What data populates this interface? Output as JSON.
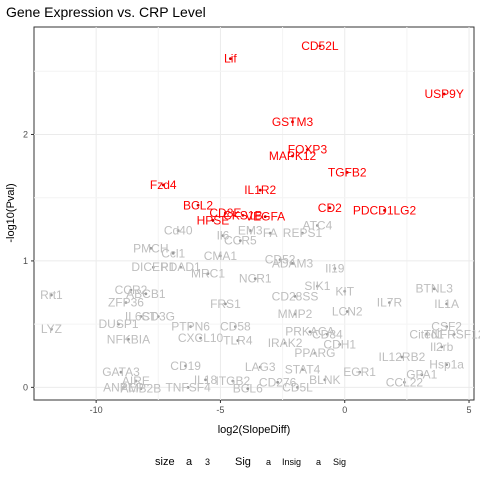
{
  "chart_data": {
    "type": "scatter",
    "title": "Gene Expression vs. CRP Level",
    "xlabel": "log2(SlopeDiff)",
    "ylabel": "-log10(Pval)",
    "xlim": [
      -12.5,
      5.2
    ],
    "ylim": [
      -0.1,
      2.85
    ],
    "x_ticks": [
      -10,
      -5,
      0,
      5
    ],
    "y_ticks": [
      0,
      1,
      2
    ],
    "grid": true,
    "colors": {
      "insig": "#bebebe",
      "sig": "#ff0000",
      "point_insig": "#9a9a9a",
      "point_sig": "#cc0000"
    },
    "legend": {
      "position": "bottom",
      "size_title": "size",
      "size_key": "a",
      "size_value": "3",
      "sig_title": "Sig",
      "key_glyph": "a",
      "items": [
        {
          "name": "Insig",
          "group": "insig"
        },
        {
          "name": "Sig",
          "group": "sig"
        }
      ]
    },
    "significant": [
      {
        "label": "CD52L",
        "x": -1.0,
        "y": 2.7
      },
      {
        "label": "Lif",
        "x": -4.6,
        "y": 2.6
      },
      {
        "label": "USP9Y",
        "x": 4.0,
        "y": 2.32
      },
      {
        "label": "GSTM3",
        "x": -2.1,
        "y": 2.1
      },
      {
        "label": "FOXP3",
        "x": -1.5,
        "y": 1.88
      },
      {
        "label": "MAPK12",
        "x": -2.1,
        "y": 1.83
      },
      {
        "label": "TGFB2",
        "x": 0.1,
        "y": 1.7
      },
      {
        "label": "Fzd4",
        "x": -7.3,
        "y": 1.6
      },
      {
        "label": "IL1R2",
        "x": -3.4,
        "y": 1.56
      },
      {
        "label": "BCL2",
        "x": -5.9,
        "y": 1.44
      },
      {
        "label": "CD2",
        "x": -0.6,
        "y": 1.42
      },
      {
        "label": "PDCD1LG2",
        "x": 1.6,
        "y": 1.4
      },
      {
        "label": "CD8E",
        "x": -4.8,
        "y": 1.38
      },
      {
        "label": "CKS1B",
        "x": -4.1,
        "y": 1.36
      },
      {
        "label": "VEGFA",
        "x": -3.2,
        "y": 1.35
      },
      {
        "label": "HPSE",
        "x": -5.3,
        "y": 1.32
      }
    ],
    "insignificant": [
      {
        "label": "ATC4",
        "x": -1.1,
        "y": 1.28
      },
      {
        "label": "EM3",
        "x": -3.8,
        "y": 1.24
      },
      {
        "label": "FA",
        "x": -3.0,
        "y": 1.22
      },
      {
        "label": "REPS1",
        "x": -1.7,
        "y": 1.22
      },
      {
        "label": "Il6",
        "x": -4.9,
        "y": 1.2
      },
      {
        "label": "Cd40",
        "x": -6.7,
        "y": 1.24
      },
      {
        "label": "CCR5",
        "x": -4.2,
        "y": 1.16
      },
      {
        "label": "PMCH",
        "x": -7.8,
        "y": 1.1
      },
      {
        "label": "Ccl1",
        "x": -6.9,
        "y": 1.06
      },
      {
        "label": "CMA1",
        "x": -5.0,
        "y": 1.04
      },
      {
        "label": "CD52",
        "x": -2.6,
        "y": 1.01
      },
      {
        "label": "ADAM3",
        "x": -2.1,
        "y": 0.98
      },
      {
        "label": "DICER1",
        "x": -7.7,
        "y": 0.95
      },
      {
        "label": "PDAD1",
        "x": -6.6,
        "y": 0.95
      },
      {
        "label": "Il19",
        "x": -0.4,
        "y": 0.94
      },
      {
        "label": "MRC1",
        "x": -5.5,
        "y": 0.9
      },
      {
        "label": "NCR1",
        "x": -3.6,
        "y": 0.86
      },
      {
        "label": "SIK1",
        "x": -1.1,
        "y": 0.8
      },
      {
        "label": "KIT",
        "x": 0.0,
        "y": 0.76
      },
      {
        "label": "BTNL3",
        "x": 3.6,
        "y": 0.78
      },
      {
        "label": "Rrt1",
        "x": -11.8,
        "y": 0.73
      },
      {
        "label": "CCR2",
        "x": -8.6,
        "y": 0.77
      },
      {
        "label": "ABCB1",
        "x": -8.0,
        "y": 0.74
      },
      {
        "label": "CD28SS",
        "x": -2.0,
        "y": 0.72
      },
      {
        "label": "IL7R",
        "x": 1.8,
        "y": 0.67
      },
      {
        "label": "IL1A",
        "x": 4.1,
        "y": 0.66
      },
      {
        "label": "ZFP36",
        "x": -8.8,
        "y": 0.67
      },
      {
        "label": "FRS1",
        "x": -4.8,
        "y": 0.66
      },
      {
        "label": "LCN2",
        "x": 0.1,
        "y": 0.6
      },
      {
        "label": "MMP2",
        "x": -2.0,
        "y": 0.58
      },
      {
        "label": "IL6ST",
        "x": -8.2,
        "y": 0.56
      },
      {
        "label": "CD3G",
        "x": -7.5,
        "y": 0.56
      },
      {
        "label": "DUSP1",
        "x": -9.1,
        "y": 0.5
      },
      {
        "label": "PTPN6",
        "x": -6.2,
        "y": 0.48
      },
      {
        "label": "CSF2",
        "x": 4.1,
        "y": 0.48
      },
      {
        "label": "LYZ",
        "x": -11.8,
        "y": 0.46
      },
      {
        "label": "CD58",
        "x": -4.4,
        "y": 0.48
      },
      {
        "label": "PRKACA",
        "x": -1.4,
        "y": 0.44
      },
      {
        "label": "CD84",
        "x": -0.7,
        "y": 0.42
      },
      {
        "label": "Cited1",
        "x": 3.3,
        "y": 0.42
      },
      {
        "label": "TNFRSF12",
        "x": 4.4,
        "y": 0.42
      },
      {
        "label": "NFKBIA",
        "x": -8.7,
        "y": 0.38
      },
      {
        "label": "CXCL10",
        "x": -5.8,
        "y": 0.39
      },
      {
        "label": "TLR4",
        "x": -4.3,
        "y": 0.37
      },
      {
        "label": "IRAK2",
        "x": -2.4,
        "y": 0.35
      },
      {
        "label": "CDH1",
        "x": -0.2,
        "y": 0.34
      },
      {
        "label": "Il2rb",
        "x": 3.9,
        "y": 0.32
      },
      {
        "label": "IL12RB2",
        "x": 2.3,
        "y": 0.24
      },
      {
        "label": "PPARG",
        "x": -1.2,
        "y": 0.27
      },
      {
        "label": "Hsp1a",
        "x": 4.1,
        "y": 0.18
      },
      {
        "label": "GATA3",
        "x": -9.0,
        "y": 0.12
      },
      {
        "label": "CD19",
        "x": -6.4,
        "y": 0.17
      },
      {
        "label": "LAG3",
        "x": -3.4,
        "y": 0.16
      },
      {
        "label": "STAT4",
        "x": -1.7,
        "y": 0.14
      },
      {
        "label": "EGR1",
        "x": 0.6,
        "y": 0.12
      },
      {
        "label": "GPA1",
        "x": 3.1,
        "y": 0.1
      },
      {
        "label": "AIRE",
        "x": -8.4,
        "y": 0.05
      },
      {
        "label": "IL18",
        "x": -5.6,
        "y": 0.06
      },
      {
        "label": "ITGB2",
        "x": -4.5,
        "y": 0.05
      },
      {
        "label": "CD276",
        "x": -2.7,
        "y": 0.04
      },
      {
        "label": "BLNK",
        "x": -0.8,
        "y": 0.06
      },
      {
        "label": "CCL22",
        "x": 2.4,
        "y": 0.04
      },
      {
        "label": "ANPEP",
        "x": -8.9,
        "y": 0.0
      },
      {
        "label": "AMB2B",
        "x": -8.2,
        "y": -0.01
      },
      {
        "label": "TNFSF4",
        "x": -6.3,
        "y": 0.0
      },
      {
        "label": "BCL6",
        "x": -3.9,
        "y": -0.01
      },
      {
        "label": "CD5L",
        "x": -1.9,
        "y": 0.0
      }
    ]
  }
}
